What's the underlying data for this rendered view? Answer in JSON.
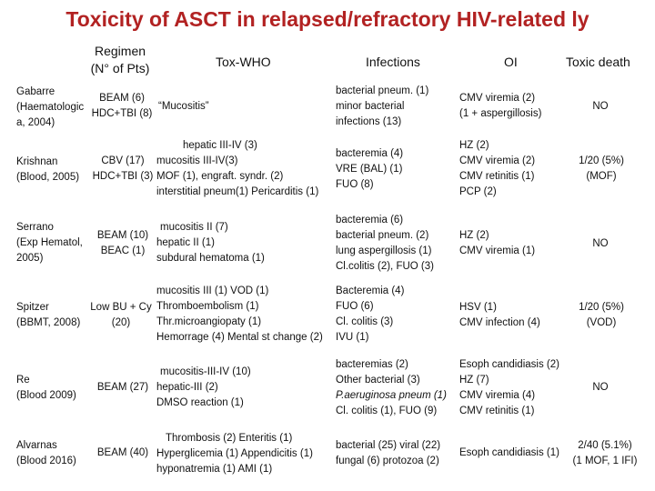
{
  "title": "Toxicity of ASCT in relapsed/refractory HIV-related ly",
  "header": {
    "regimen": [
      "Regimen",
      "(N° of Pts)"
    ],
    "tox_who": "Tox-WHO",
    "infections": "Infections",
    "oi": "OI",
    "toxic_death": "Toxic death"
  },
  "rows": [
    {
      "study": [
        "Gabarre",
        "(Haematologic",
        "a, 2004)"
      ],
      "regimen": [
        "BEAM (6)",
        "HDC+TBI (8)"
      ],
      "tox": [
        "“Mucositis”"
      ],
      "infections": [
        "bacterial pneum. (1)",
        "minor bacterial",
        "infections (13)"
      ],
      "oi": [
        "CMV viremia (2)",
        "(1 + aspergillosis)"
      ],
      "death": [
        "NO"
      ]
    },
    {
      "study": [
        "Krishnan",
        "(Blood, 2005)"
      ],
      "regimen": [
        "CBV (17)",
        "HDC+TBI (3)"
      ],
      "tox": [
        "hepatic III-IV (3)",
        "mucositis III-IV(3)",
        "MOF (1), engraft. syndr. (2)",
        "interstitial pneum(1) Pericarditis (1)"
      ],
      "infections": [
        "bacteremia (4)",
        "VRE (BAL) (1)",
        "FUO (8)"
      ],
      "oi": [
        "HZ (2)",
        "CMV viremia (2)",
        "CMV retinitis (1)",
        "PCP (2)"
      ],
      "death": [
        "1/20 (5%)",
        "(MOF)"
      ]
    },
    {
      "study": [
        "Serrano",
        "(Exp Hematol,",
        "2005)"
      ],
      "regimen": [
        "BEAM (10)",
        "BEAC (1)"
      ],
      "tox": [
        "mucositis II (7)",
        "hepatic II (1)",
        "subdural hematoma (1)"
      ],
      "infections": [
        "bacteremia (6)",
        "bacterial pneum. (2)",
        "lung aspergillosis (1)",
        "Cl.colitis (2), FUO (3)"
      ],
      "oi": [
        "HZ (2)",
        "CMV viremia (1)"
      ],
      "death": [
        "NO"
      ]
    },
    {
      "study": [
        "Spitzer",
        "(BBMT, 2008)"
      ],
      "regimen": [
        "Low BU + Cy",
        "(20)"
      ],
      "tox": [
        "mucositis III (1) VOD (1)",
        "Thromboembolism (1)",
        "Thr.microangiopaty (1)",
        "Hemorrage (4) Mental st change (2)"
      ],
      "infections": [
        "Bacteremia (4)",
        "FUO (6)",
        "Cl. colitis (3)",
        "IVU (1)"
      ],
      "oi": [
        "HSV (1)",
        "CMV infection (4)"
      ],
      "death": [
        "1/20 (5%)",
        "(VOD)"
      ]
    },
    {
      "study": [
        "Re",
        "(Blood 2009)"
      ],
      "regimen": [
        "BEAM (27)"
      ],
      "tox": [
        "mucositis-III-IV (10)",
        "hepatic-III (2)",
        "DMSO reaction (1)"
      ],
      "infections": [
        "bacteremias (2)",
        "Other bacterial (3)",
        "P.aeruginosa pneum (1)",
        "Cl. colitis (1), FUO (9)"
      ],
      "oi": [
        "Esoph candidiasis (2)",
        "HZ (7)",
        "CMV viremia (4)",
        "CMV retinitis (1)"
      ],
      "death": [
        "NO"
      ]
    },
    {
      "study": [
        "Alvarnas",
        "(Blood 2016)"
      ],
      "regimen": [
        "BEAM (40)"
      ],
      "tox": [
        "Thrombosis (2) Enteritis (1)",
        "Hyperglicemia (1) Appendicitis (1)",
        "hyponatremia (1) AMI (1)"
      ],
      "infections": [
        "bacterial (25) viral (22)",
        "fungal (6) protozoa (2)"
      ],
      "oi": [
        "Esoph candidiasis (1)"
      ],
      "death": [
        "2/40 (5.1%)",
        "(1 MOF, 1 IFI)"
      ]
    }
  ]
}
